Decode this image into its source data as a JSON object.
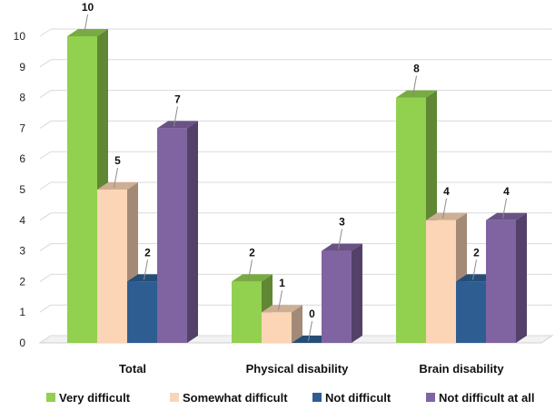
{
  "chart_data": {
    "type": "bar",
    "categories": [
      "Total",
      "Physical disability",
      "Brain disability"
    ],
    "series": [
      {
        "name": "Very difficult",
        "values": [
          10,
          2,
          8
        ]
      },
      {
        "name": "Somewhat difficult",
        "values": [
          5,
          1,
          4
        ]
      },
      {
        "name": "Not difficult",
        "values": [
          2,
          0,
          2
        ]
      },
      {
        "name": "Not difficult at all",
        "values": [
          7,
          3,
          4
        ]
      }
    ],
    "title": "",
    "xlabel": "",
    "ylabel": "",
    "ylim": [
      0,
      10
    ],
    "yticks": [
      0,
      1,
      2,
      3,
      4,
      5,
      6,
      7,
      8,
      9,
      10
    ],
    "grid": true,
    "legend_position": "bottom",
    "colors": [
      "#92D050",
      "#FBD5B5",
      "#2E5E91",
      "#8064A2"
    ]
  }
}
